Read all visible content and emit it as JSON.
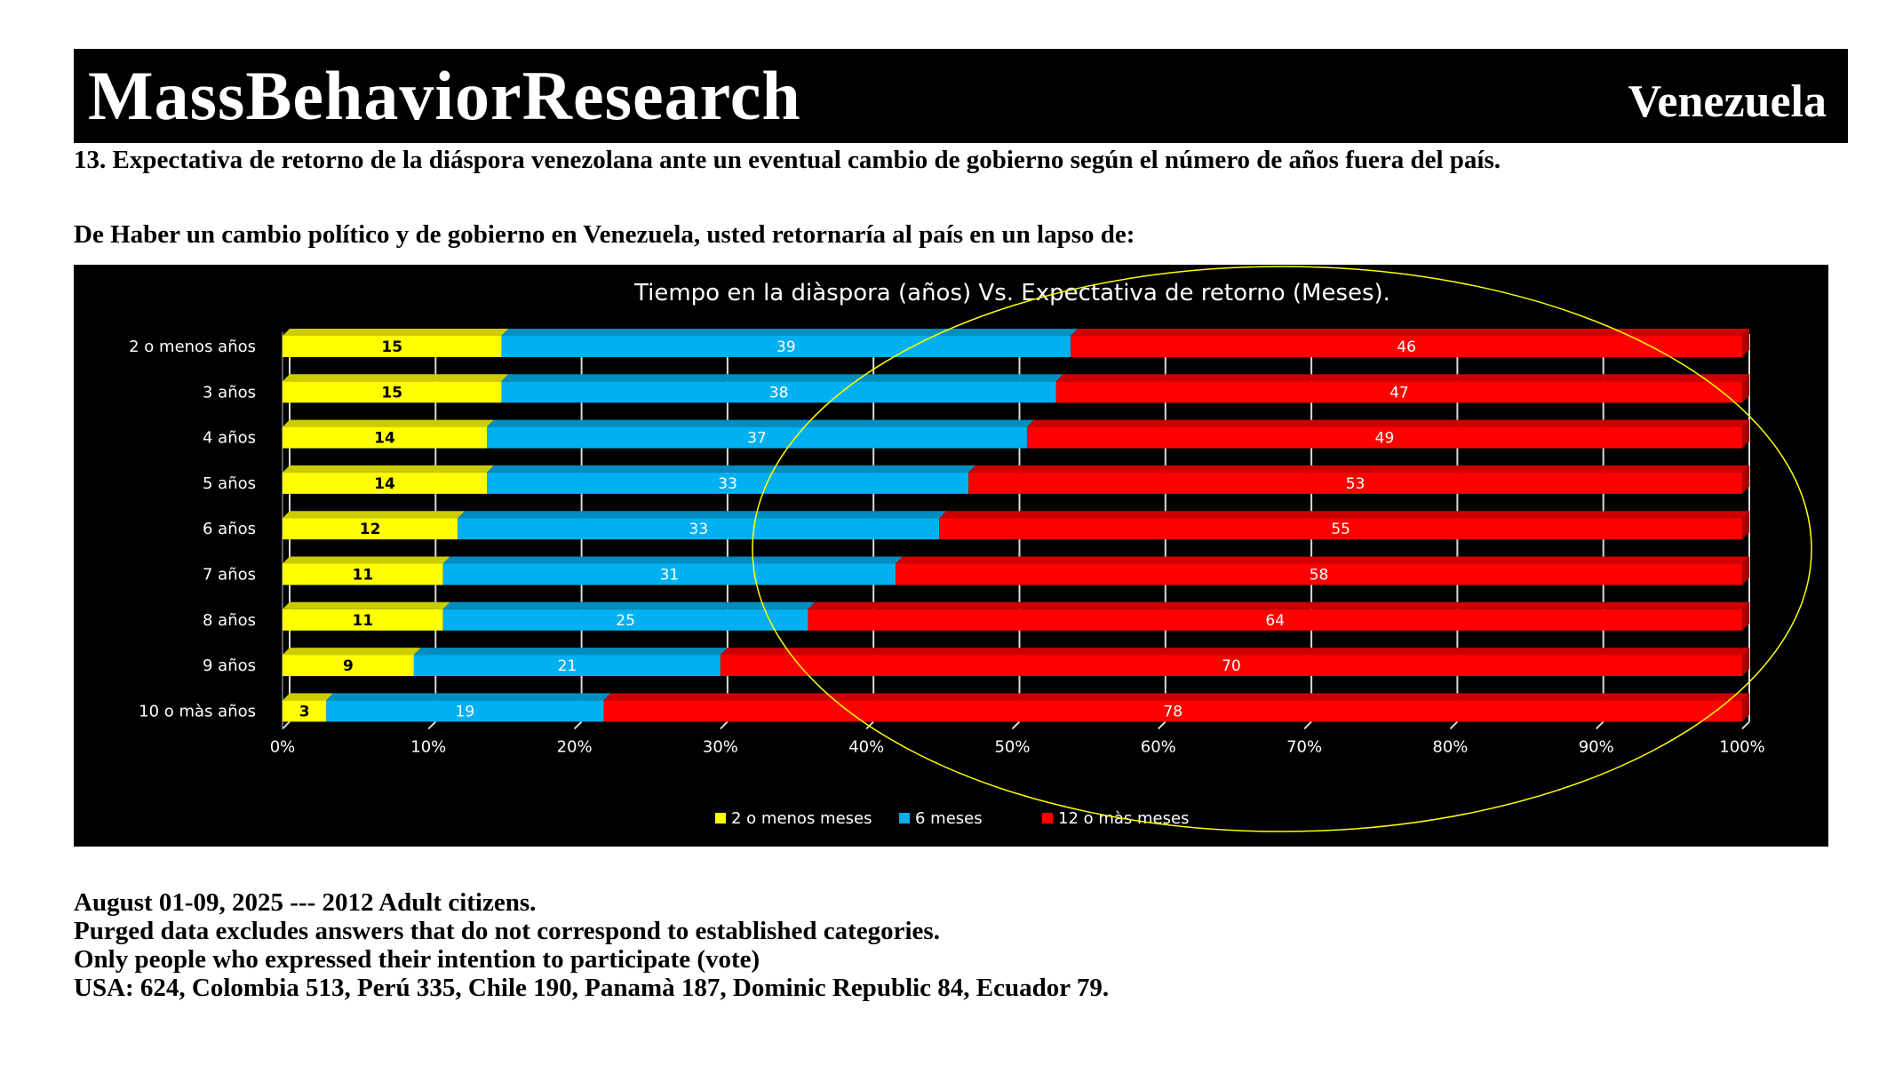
{
  "header": {
    "brand": "MassBehaviorResearch",
    "country": "Venezuela"
  },
  "question": "13. Expectativa de retorno de la diáspora venezolana ante un eventual cambio de gobierno según el número de años fuera del país.",
  "prompt": "De Haber un cambio político y de gobierno en Venezuela, usted retornaría al país en un lapso de:",
  "footer": {
    "line1": "August 01-09, 2025 --- 2012 Adult citizens.",
    "line2": "Purged data excludes answers that do not correspond to established categories.",
    "line3": "Only people who expressed their intention to participate (vote)",
    "line4": "USA: 624, Colombia 513, Perú 335, Chile 190, Panamà 187, Dominic Republic 84, Ecuador 79."
  },
  "chart_data": {
    "type": "bar",
    "orientation": "horizontal",
    "stacked": "100%",
    "title": "Tiempo en la diàspora (años) Vs. Expectativa de retorno (Meses).",
    "categories": [
      "2 o menos años",
      "3 años",
      "4 años",
      "5 años",
      "6 años",
      "7 años",
      "8 años",
      "9 años",
      "10 o màs años"
    ],
    "series": [
      {
        "name": "2 o menos meses",
        "color": "#FFFF00",
        "values": [
          15,
          15,
          14,
          14,
          12,
          11,
          11,
          9,
          3
        ]
      },
      {
        "name": "6 meses",
        "color": "#00B0F0",
        "values": [
          39,
          38,
          37,
          33,
          33,
          31,
          25,
          21,
          19
        ]
      },
      {
        "name": "12 o màs meses",
        "color": "#FF0000",
        "values": [
          46,
          47,
          49,
          53,
          55,
          58,
          64,
          70,
          78
        ]
      }
    ],
    "x_ticks": [
      "0%",
      "10%",
      "20%",
      "30%",
      "40%",
      "50%",
      "60%",
      "70%",
      "80%",
      "90%",
      "100%"
    ],
    "xlim": [
      0,
      100
    ],
    "grid": true,
    "legend": "bottom",
    "annotation": "yellow ellipse highlighting the 12 o màs meses segments"
  }
}
